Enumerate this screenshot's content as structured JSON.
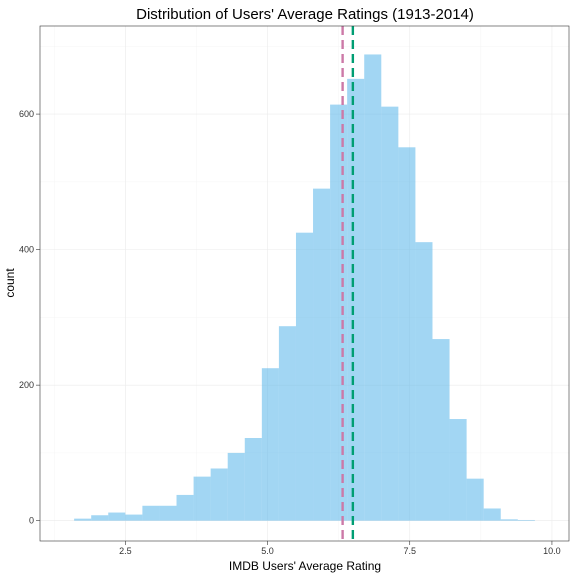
{
  "chart_data": {
    "type": "bar",
    "subtype": "histogram",
    "title": "Distribution of Users' Average Ratings (1913-2014)",
    "xlabel": "IMDB Users' Average Rating",
    "ylabel": "count",
    "xlim": [
      1.0,
      10.3
    ],
    "ylim": [
      -30,
      730
    ],
    "x_ticks": [
      2.5,
      5.0,
      7.5,
      10.0
    ],
    "x_tick_labels": [
      "2.5",
      "5.0",
      "7.5",
      "10.0"
    ],
    "y_ticks": [
      0,
      200,
      400,
      600
    ],
    "y_tick_labels": [
      "0",
      "200",
      "400",
      "600"
    ],
    "grid": true,
    "bin_width": 0.3,
    "bins": [
      {
        "x0": 1.6,
        "x1": 1.9,
        "count": 3
      },
      {
        "x0": 1.9,
        "x1": 2.2,
        "count": 8
      },
      {
        "x0": 2.2,
        "x1": 2.5,
        "count": 12
      },
      {
        "x0": 2.5,
        "x1": 2.8,
        "count": 9
      },
      {
        "x0": 2.8,
        "x1": 3.1,
        "count": 22
      },
      {
        "x0": 3.1,
        "x1": 3.4,
        "count": 22
      },
      {
        "x0": 3.4,
        "x1": 3.7,
        "count": 38
      },
      {
        "x0": 3.7,
        "x1": 4.0,
        "count": 65
      },
      {
        "x0": 4.0,
        "x1": 4.3,
        "count": 77
      },
      {
        "x0": 4.3,
        "x1": 4.6,
        "count": 100
      },
      {
        "x0": 4.6,
        "x1": 4.9,
        "count": 122
      },
      {
        "x0": 4.9,
        "x1": 5.2,
        "count": 225
      },
      {
        "x0": 5.2,
        "x1": 5.5,
        "count": 287
      },
      {
        "x0": 5.5,
        "x1": 5.8,
        "count": 425
      },
      {
        "x0": 5.8,
        "x1": 6.1,
        "count": 490
      },
      {
        "x0": 6.1,
        "x1": 6.4,
        "count": 614
      },
      {
        "x0": 6.4,
        "x1": 6.7,
        "count": 652
      },
      {
        "x0": 6.7,
        "x1": 7.0,
        "count": 688
      },
      {
        "x0": 7.0,
        "x1": 7.3,
        "count": 611
      },
      {
        "x0": 7.3,
        "x1": 7.6,
        "count": 551
      },
      {
        "x0": 7.6,
        "x1": 7.9,
        "count": 411
      },
      {
        "x0": 7.9,
        "x1": 8.2,
        "count": 268
      },
      {
        "x0": 8.2,
        "x1": 8.5,
        "count": 150
      },
      {
        "x0": 8.5,
        "x1": 8.8,
        "count": 62
      },
      {
        "x0": 8.8,
        "x1": 9.1,
        "count": 18
      },
      {
        "x0": 9.1,
        "x1": 9.4,
        "count": 2
      },
      {
        "x0": 9.4,
        "x1": 9.7,
        "count": 1
      }
    ],
    "reference_lines": [
      {
        "x": 6.32,
        "color": "#cc79a7",
        "style": "dashed"
      },
      {
        "x": 6.5,
        "color": "#009e73",
        "style": "dashed"
      }
    ],
    "bar_color": "#56b4e9",
    "bar_opacity": 0.55
  }
}
